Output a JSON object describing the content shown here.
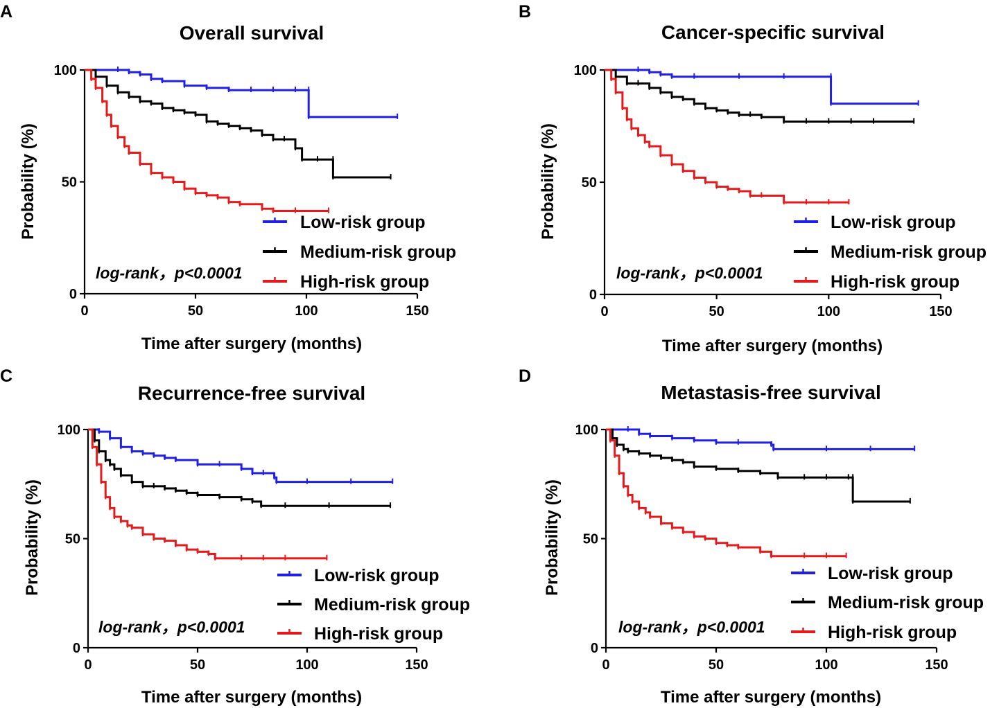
{
  "colors": {
    "low": "#1f1fe6",
    "medium": "#000000",
    "high": "#e51a1a"
  },
  "chart_data": [
    {
      "type": "line",
      "panel": "A",
      "title": "Overall survival",
      "xlabel": "Time after surgery (months)",
      "ylabel": "Probability (%)",
      "xlim": [
        0,
        150
      ],
      "ylim": [
        0,
        100
      ],
      "xticks": [
        "0",
        "50",
        "100",
        "150"
      ],
      "yticks": [
        "0",
        "50",
        "100"
      ],
      "annotation": "log-rank，p<0.0001",
      "series": [
        {
          "name": "Low-risk group",
          "color": "#1f1fe6",
          "x": [
            0,
            15,
            20,
            25,
            30,
            35,
            45,
            55,
            65,
            75,
            85,
            95,
            101,
            101,
            141
          ],
          "y": [
            100,
            100,
            99,
            98,
            96,
            95,
            93,
            92,
            91,
            91,
            91,
            91,
            91,
            79,
            79
          ]
        },
        {
          "name": "Medium-risk group",
          "color": "#000000",
          "x": [
            0,
            5,
            10,
            15,
            20,
            25,
            30,
            35,
            40,
            45,
            50,
            55,
            60,
            65,
            70,
            75,
            80,
            85,
            90,
            95,
            98,
            105,
            112,
            112,
            138
          ],
          "y": [
            100,
            97,
            93,
            90,
            88,
            86,
            85,
            83,
            82,
            81,
            80,
            77,
            76,
            75,
            74,
            73,
            71,
            69,
            69,
            65,
            60,
            60,
            60,
            52,
            52
          ]
        },
        {
          "name": "High-risk group",
          "color": "#e51a1a",
          "x": [
            0,
            3,
            5,
            8,
            10,
            12,
            15,
            18,
            20,
            25,
            30,
            35,
            40,
            45,
            50,
            55,
            60,
            65,
            70,
            80,
            85,
            95,
            110
          ],
          "y": [
            100,
            96,
            92,
            86,
            80,
            75,
            70,
            66,
            63,
            58,
            54,
            52,
            50,
            47,
            45,
            44,
            43,
            41,
            40,
            38,
            37,
            37,
            37
          ]
        }
      ]
    },
    {
      "type": "line",
      "panel": "B",
      "title": "Cancer-specific survival",
      "xlabel": "Time after surgery (months)",
      "ylabel": "Probability (%)",
      "xlim": [
        0,
        150
      ],
      "ylim": [
        0,
        100
      ],
      "xticks": [
        "0",
        "50",
        "100",
        "150"
      ],
      "yticks": [
        "0",
        "50",
        "100"
      ],
      "annotation": "log-rank，p<0.0001",
      "series": [
        {
          "name": "Low-risk group",
          "color": "#1f1fe6",
          "x": [
            0,
            15,
            20,
            25,
            30,
            40,
            60,
            80,
            101,
            101,
            140
          ],
          "y": [
            100,
            100,
            99,
            98,
            97,
            97,
            97,
            97,
            97,
            85,
            85
          ]
        },
        {
          "name": "Medium-risk group",
          "color": "#000000",
          "x": [
            0,
            5,
            10,
            15,
            20,
            25,
            30,
            35,
            40,
            45,
            50,
            55,
            60,
            65,
            70,
            80,
            90,
            100,
            110,
            120,
            138
          ],
          "y": [
            100,
            97,
            94,
            94,
            92,
            90,
            88,
            87,
            85,
            83,
            82,
            81,
            80,
            80,
            79,
            77,
            77,
            77,
            77,
            77,
            77
          ]
        },
        {
          "name": "High-risk group",
          "color": "#e51a1a",
          "x": [
            0,
            3,
            5,
            8,
            10,
            12,
            15,
            18,
            20,
            25,
            30,
            35,
            40,
            45,
            50,
            55,
            60,
            65,
            70,
            80,
            90,
            100,
            109
          ],
          "y": [
            100,
            96,
            90,
            83,
            78,
            74,
            71,
            68,
            66,
            62,
            58,
            55,
            52,
            50,
            48,
            47,
            46,
            44,
            44,
            41,
            41,
            41,
            41
          ]
        }
      ]
    },
    {
      "type": "line",
      "panel": "C",
      "title": "Recurrence-free survival",
      "xlabel": "Time after surgery (months)",
      "ylabel": "Probability (%)",
      "xlim": [
        0,
        150
      ],
      "ylim": [
        0,
        100
      ],
      "xticks": [
        "0",
        "50",
        "100",
        "150"
      ],
      "yticks": [
        "0",
        "50",
        "100"
      ],
      "annotation": "log-rank，p<0.0001",
      "series": [
        {
          "name": "Low-risk group",
          "color": "#1f1fe6",
          "x": [
            0,
            5,
            10,
            15,
            20,
            25,
            30,
            35,
            40,
            50,
            60,
            70,
            75,
            80,
            85,
            86,
            100,
            120,
            139
          ],
          "y": [
            100,
            99,
            96,
            92,
            90,
            89,
            88,
            87,
            86,
            84,
            84,
            82,
            80,
            80,
            78,
            76,
            76,
            76,
            76
          ]
        },
        {
          "name": "Medium-risk group",
          "color": "#000000",
          "x": [
            0,
            3,
            5,
            8,
            10,
            12,
            15,
            20,
            25,
            30,
            35,
            40,
            45,
            50,
            60,
            70,
            75,
            79,
            90,
            110,
            138
          ],
          "y": [
            100,
            95,
            90,
            86,
            84,
            82,
            79,
            76,
            74,
            74,
            73,
            72,
            71,
            70,
            69,
            68,
            67,
            65,
            65,
            65,
            65
          ]
        },
        {
          "name": "High-risk group",
          "color": "#e51a1a",
          "x": [
            0,
            2,
            4,
            6,
            8,
            10,
            12,
            15,
            18,
            20,
            25,
            30,
            35,
            40,
            45,
            50,
            55,
            58,
            70,
            80,
            90,
            109
          ],
          "y": [
            100,
            92,
            84,
            76,
            69,
            64,
            60,
            58,
            56,
            55,
            52,
            50,
            49,
            47,
            45,
            44,
            43,
            41,
            41,
            41,
            41,
            41
          ]
        }
      ]
    },
    {
      "type": "line",
      "panel": "D",
      "title": "Metastasis-free survival",
      "xlabel": "Time after surgery (months)",
      "ylabel": "Probability (%)",
      "xlim": [
        0,
        150
      ],
      "ylim": [
        0,
        100
      ],
      "xticks": [
        "0",
        "50",
        "100",
        "150"
      ],
      "yticks": [
        "0",
        "50",
        "100"
      ],
      "annotation": "log-rank，p<0.0001",
      "series": [
        {
          "name": "Low-risk group",
          "color": "#1f1fe6",
          "x": [
            0,
            10,
            15,
            20,
            30,
            40,
            50,
            60,
            75,
            76,
            100,
            120,
            140
          ],
          "y": [
            100,
            100,
            98,
            97,
            96,
            95,
            94,
            94,
            93,
            91,
            91,
            91,
            91
          ]
        },
        {
          "name": "Medium-risk group",
          "color": "#000000",
          "x": [
            0,
            3,
            5,
            8,
            10,
            15,
            20,
            25,
            30,
            35,
            40,
            50,
            60,
            70,
            78,
            90,
            100,
            110,
            112,
            112,
            138
          ],
          "y": [
            100,
            96,
            93,
            91,
            90,
            89,
            88,
            87,
            86,
            85,
            83,
            82,
            81,
            80,
            78,
            78,
            78,
            78,
            78,
            67,
            67
          ]
        },
        {
          "name": "High-risk group",
          "color": "#e51a1a",
          "x": [
            0,
            2,
            4,
            6,
            8,
            10,
            12,
            15,
            18,
            20,
            25,
            30,
            35,
            40,
            45,
            50,
            55,
            60,
            70,
            75,
            90,
            100,
            109
          ],
          "y": [
            100,
            95,
            88,
            80,
            74,
            70,
            67,
            64,
            62,
            60,
            57,
            55,
            53,
            51,
            50,
            48,
            47,
            46,
            44,
            42,
            42,
            42,
            42
          ]
        }
      ]
    }
  ]
}
